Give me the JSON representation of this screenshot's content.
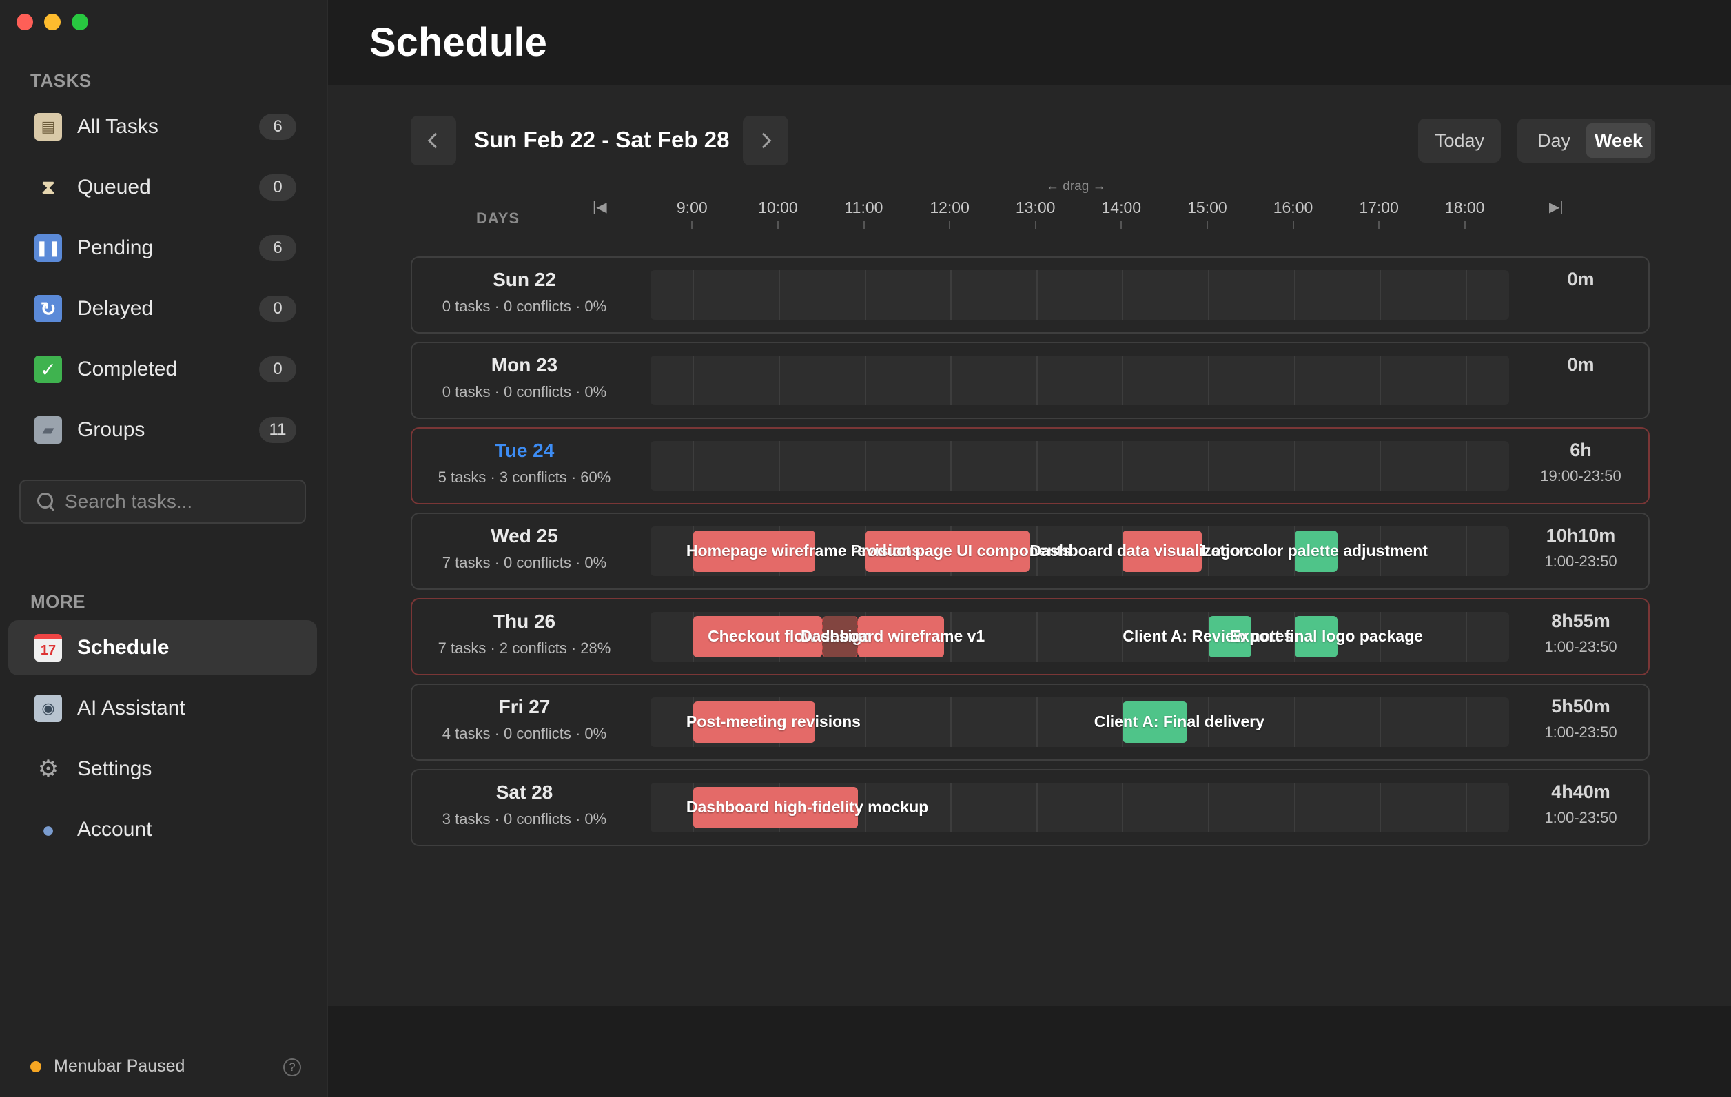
{
  "sidebar": {
    "tasks_label": "TASKS",
    "items": [
      {
        "label": "All Tasks",
        "count": "6",
        "icon": "clipboard-icon"
      },
      {
        "label": "Queued",
        "count": "0",
        "icon": "hourglass-icon"
      },
      {
        "label": "Pending",
        "count": "6",
        "icon": "pause-icon"
      },
      {
        "label": "Delayed",
        "count": "0",
        "icon": "refresh-icon"
      },
      {
        "label": "Completed",
        "count": "0",
        "icon": "checkmark-icon"
      },
      {
        "label": "Groups",
        "count": "11",
        "icon": "folder-icon"
      }
    ],
    "search_placeholder": "Search tasks...",
    "more_label": "MORE",
    "more_items": [
      {
        "label": "Schedule",
        "icon": "calendar-icon",
        "active": true
      },
      {
        "label": "AI Assistant",
        "icon": "robot-icon"
      },
      {
        "label": "Settings",
        "icon": "gear-icon"
      },
      {
        "label": "Account",
        "icon": "person-icon"
      }
    ],
    "footer_status": "Menubar Paused",
    "footer_help": "?"
  },
  "header": {
    "title": "Schedule"
  },
  "toolbar": {
    "range": "Sun Feb 22 - Sat Feb 28",
    "today": "Today",
    "view_day": "Day",
    "view_week": "Week",
    "active_view": "Week"
  },
  "timeline": {
    "days_label": "DAYS",
    "drag_hint": "← drag →",
    "start_marker": "|◀",
    "end_marker": "▶|",
    "hours": [
      "9:00",
      "10:00",
      "11:00",
      "12:00",
      "13:00",
      "14:00",
      "15:00",
      "16:00",
      "17:00",
      "18:00"
    ]
  },
  "days": [
    {
      "name": "Sun 22",
      "stats": "0 tasks · 0 conflicts · 0%",
      "total": "0m",
      "window": "",
      "today": false,
      "conflict": false,
      "blocks": [],
      "labels": []
    },
    {
      "name": "Mon 23",
      "stats": "0 tasks · 0 conflicts · 0%",
      "total": "0m",
      "window": "",
      "today": false,
      "conflict": false,
      "blocks": [],
      "labels": []
    },
    {
      "name": "Tue 24",
      "stats": "5 tasks · 3 conflicts · 60%",
      "total": "6h",
      "window": "19:00-23:50",
      "today": true,
      "conflict": true,
      "blocks": [],
      "labels": []
    },
    {
      "name": "Wed 25",
      "stats": "7 tasks · 0 conflicts · 0%",
      "total": "10h10m",
      "window": "1:00-23:50",
      "today": false,
      "conflict": false,
      "blocks": [
        {
          "start": "9:00",
          "end": "10:25",
          "color": "red"
        },
        {
          "start": "11:00",
          "end": "12:55",
          "color": "red"
        },
        {
          "start": "14:00",
          "end": "14:55",
          "color": "red"
        },
        {
          "start": "16:00",
          "end": "16:30",
          "color": "green"
        }
      ],
      "labels": [
        {
          "text": "Homepage wireframe revisions",
          "at": "8:55"
        },
        {
          "text": "Product page UI components",
          "at": "10:50"
        },
        {
          "text": "Dashboard data visualization",
          "at": "12:55"
        },
        {
          "text": "Logo color palette adjustment",
          "at": "14:55"
        }
      ]
    },
    {
      "name": "Thu 26",
      "stats": "7 tasks · 2 conflicts · 28%",
      "total": "8h55m",
      "window": "1:00-23:50",
      "today": false,
      "conflict": true,
      "blocks": [
        {
          "start": "9:00",
          "end": "10:30",
          "color": "red"
        },
        {
          "start": "10:30",
          "end": "10:55",
          "color": "conflict-zone"
        },
        {
          "start": "10:55",
          "end": "11:55",
          "color": "red"
        },
        {
          "start": "15:00",
          "end": "15:30",
          "color": "green"
        },
        {
          "start": "16:00",
          "end": "16:30",
          "color": "green"
        }
      ],
      "labels": [
        {
          "text": "Checkout flow design",
          "at": "9:10"
        },
        {
          "text": "Dashboard wireframe v1",
          "at": "10:15"
        },
        {
          "text": "Client A: Review notes",
          "at": "14:00"
        },
        {
          "text": "Export final logo package",
          "at": "15:15"
        }
      ]
    },
    {
      "name": "Fri 27",
      "stats": "4 tasks · 0 conflicts · 0%",
      "total": "5h50m",
      "window": "1:00-23:50",
      "today": false,
      "conflict": false,
      "blocks": [
        {
          "start": "9:00",
          "end": "10:25",
          "color": "red"
        },
        {
          "start": "14:00",
          "end": "14:45",
          "color": "green"
        }
      ],
      "labels": [
        {
          "text": "Post-meeting revisions",
          "at": "8:55"
        },
        {
          "text": "Client A: Final delivery",
          "at": "13:40"
        }
      ]
    },
    {
      "name": "Sat 28",
      "stats": "3 tasks · 0 conflicts · 0%",
      "total": "4h40m",
      "window": "1:00-23:50",
      "today": false,
      "conflict": false,
      "blocks": [
        {
          "start": "9:00",
          "end": "10:55",
          "color": "red"
        }
      ],
      "labels": [
        {
          "text": "Dashboard high-fidelity mockup",
          "at": "8:55"
        }
      ]
    }
  ],
  "colors": {
    "task_red": "#e46a68",
    "task_green": "#4fc489",
    "today_blue": "#3d8df5",
    "status_dot": "#f6a623"
  }
}
